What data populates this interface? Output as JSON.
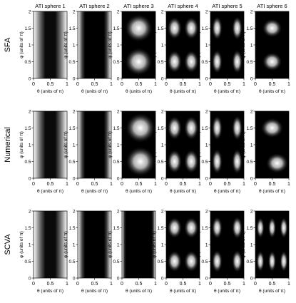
{
  "column_titles": [
    "ATI sphere 1",
    "ATI sphere 2",
    "ATI sphere 3",
    "ATI sphere 4",
    "ATI sphere 5",
    "ATI sphere 6"
  ],
  "row_labels": [
    "SFA",
    "Numerical",
    "SCVA"
  ],
  "y_axis_label": "φ (units of π)",
  "x_axis_label": "θ (units of π)",
  "y_ticks": [
    "0",
    "0.5",
    "1",
    "1.5",
    "2"
  ],
  "x_ticks": [
    "0",
    "0.5",
    "1"
  ],
  "chart_data": {
    "type": "heatmap",
    "x_range": [
      0,
      1
    ],
    "y_range": [
      0,
      2
    ],
    "colormap": "gray (black = 0, white = 1)",
    "panels": [
      {
        "row": "SFA",
        "column": "ATI sphere 1",
        "pattern": "vertical bright bands at θ=0 and θ=1, dark at θ=0.5"
      },
      {
        "row": "SFA",
        "column": "ATI sphere 2",
        "pattern": "vertical bright bands at edges, slightly wavy dark center"
      },
      {
        "row": "SFA",
        "column": "ATI sphere 3",
        "pattern": "two bright spots at θ=0.5, φ=0.5 and φ=1.5"
      },
      {
        "row": "SFA",
        "column": "ATI sphere 4",
        "pattern": "four bright spots at θ=0.25/0.75, φ=0.5/1.5"
      },
      {
        "row": "SFA",
        "column": "ATI sphere 5",
        "pattern": "four bright spots at θ=0.2/0.8, φ=0.5/1.5"
      },
      {
        "row": "SFA",
        "column": "ATI sphere 6",
        "pattern": "two bright spots at θ=0.5, φ=0.5 and φ=1.5"
      },
      {
        "row": "Numerical",
        "column": "ATI sphere 1",
        "pattern": "vertical bright bands at edges, dark at θ=0.5"
      },
      {
        "row": "Numerical",
        "column": "ATI sphere 2",
        "pattern": "vertical bright bands at edges, wavy dark center"
      },
      {
        "row": "Numerical",
        "column": "ATI sphere 3",
        "pattern": "two large bright spots near θ=0.55, φ=0.5 and φ=1.5"
      },
      {
        "row": "Numerical",
        "column": "ATI sphere 4",
        "pattern": "four bright spots at θ=0.25/0.75, φ=0.5/1.5"
      },
      {
        "row": "Numerical",
        "column": "ATI sphere 5",
        "pattern": "four bright spots at θ=0.2/0.8, φ=0.5/1.5"
      },
      {
        "row": "Numerical",
        "column": "ATI sphere 6",
        "pattern": "two bright spots offset, θ=0.55 at φ=1.5 and θ=0.65 at φ=0.5"
      },
      {
        "row": "SCVA",
        "column": "ATI sphere 1",
        "pattern": "vertical bright bands at edges, dark at θ=0.5"
      },
      {
        "row": "SCVA",
        "column": "ATI sphere 2",
        "pattern": "vertical bright bands at edges, dark center"
      },
      {
        "row": "SCVA",
        "column": "ATI sphere 3",
        "pattern": "narrow bright edges, wide dark center"
      },
      {
        "row": "SCVA",
        "column": "ATI sphere 4",
        "pattern": "four bright spots at θ=0.25/0.75, φ=0.5/1.5"
      },
      {
        "row": "SCVA",
        "column": "ATI sphere 5",
        "pattern": "four bright spots at θ=0.2/0.8, φ=0.5/1.5"
      },
      {
        "row": "SCVA",
        "column": "ATI sphere 6",
        "pattern": "six bright spots at θ=0.15/0.5/0.85, φ=0.5/1.5"
      }
    ]
  }
}
